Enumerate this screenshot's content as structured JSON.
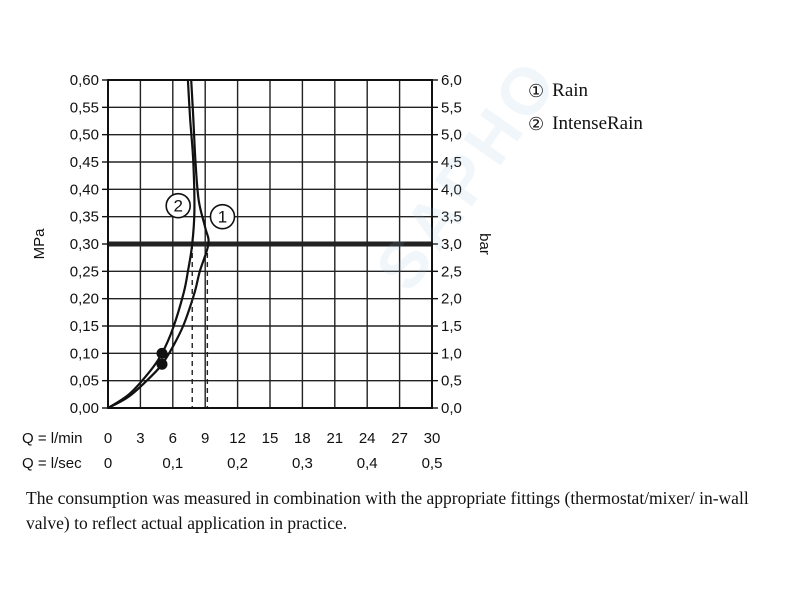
{
  "chart_data": {
    "type": "line",
    "x_axis_primary": {
      "label": "Q = l/min",
      "ticks": [
        "0",
        "3",
        "6",
        "9",
        "12",
        "15",
        "18",
        "21",
        "24",
        "27",
        "30"
      ],
      "range": [
        0,
        30
      ]
    },
    "x_axis_secondary": {
      "label": "Q = l/sec",
      "ticks": [
        "0",
        "0,1",
        "0,2",
        "0,3",
        "0,4",
        "0,5"
      ],
      "values": [
        0,
        0.1,
        0.2,
        0.3,
        0.4,
        0.5
      ]
    },
    "y_axis_left": {
      "label": "MPa",
      "ticks": [
        "0,00",
        "0,05",
        "0,10",
        "0,15",
        "0,20",
        "0,25",
        "0,30",
        "0,35",
        "0,40",
        "0,45",
        "0,50",
        "0,55",
        "0,60"
      ],
      "range": [
        0,
        0.6
      ]
    },
    "y_axis_right": {
      "label": "bar",
      "ticks": [
        "0,0",
        "0,5",
        "1,0",
        "1,5",
        "2,0",
        "2,5",
        "3,0",
        "3,5",
        "4,0",
        "4,5",
        "5,0",
        "5,5",
        "6,0"
      ],
      "range": [
        0,
        6
      ]
    },
    "grid": true,
    "reference_line": {
      "y": 0.3
    },
    "series": [
      {
        "name": "Rain",
        "marker_label": "1",
        "x": [
          0,
          2,
          4,
          5,
          6,
          7,
          8,
          8.5,
          9.3,
          9.0,
          8.4,
          8.1,
          7.9,
          7.7
        ],
        "y": [
          0,
          0.022,
          0.058,
          0.08,
          0.112,
          0.152,
          0.21,
          0.25,
          0.3,
          0.33,
          0.38,
          0.45,
          0.53,
          0.6
        ],
        "points": [
          {
            "x": 5,
            "y": 0.08
          }
        ],
        "drop_line_x": 9.2
      },
      {
        "name": "IntenseRain",
        "marker_label": "2",
        "x": [
          0,
          2,
          4,
          5,
          6,
          7,
          7.4,
          7.8,
          8.0,
          7.9,
          7.6,
          7.4
        ],
        "y": [
          0,
          0.026,
          0.07,
          0.1,
          0.145,
          0.21,
          0.25,
          0.3,
          0.36,
          0.45,
          0.53,
          0.6
        ],
        "points": [
          {
            "x": 5,
            "y": 0.1
          }
        ],
        "drop_line_x": 7.8
      }
    ]
  },
  "legend": [
    {
      "symbol": "①",
      "label": "Rain"
    },
    {
      "symbol": "②",
      "label": "IntenseRain"
    }
  ],
  "footnote": "The consumption was measured in combination with the appropriate fittings (thermostat/mixer/ in-wall valve) to reflect actual application in practice.",
  "watermark": "SAPHO"
}
